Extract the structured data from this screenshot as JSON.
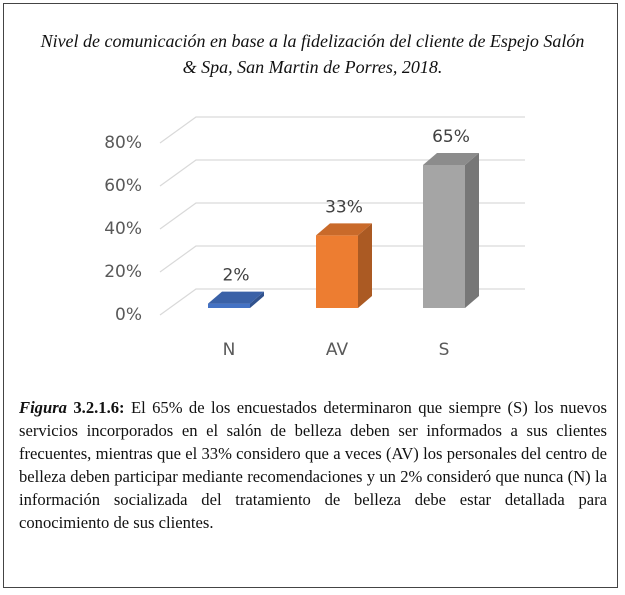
{
  "chart_data": {
    "type": "bar3d",
    "title": "Nivel de comunicación en base a la fidelización del cliente de Espejo Salón & Spa, San Martin de Porres, 2018.",
    "categories": [
      "N",
      "AV",
      "S"
    ],
    "values": [
      2,
      33,
      65
    ],
    "value_labels": [
      "2%",
      "33%",
      "65%"
    ],
    "colors": [
      "#4472c4",
      "#ed7d31",
      "#a5a5a5"
    ],
    "ylim": [
      0,
      80
    ],
    "yticks": [
      {
        "value": 0,
        "label": "0%"
      },
      {
        "value": 20,
        "label": "20%"
      },
      {
        "value": 40,
        "label": "40%"
      },
      {
        "value": 60,
        "label": "60%"
      },
      {
        "value": 80,
        "label": "80%"
      }
    ],
    "grid": true
  },
  "caption": {
    "label": "Figura",
    "number": "3.2.1.6:",
    "text": "El 65% de los encuestados determinaron que siempre (S) los nuevos servicios incorporados en el salón de belleza deben ser informados a sus clientes frecuentes, mientras que el 33% considero que a veces (AV) los personales del centro de belleza deben participar mediante recomendaciones y un 2% consideró que nunca (N) la información socializada del tratamiento de belleza debe estar detallada para conocimiento de sus clientes."
  }
}
